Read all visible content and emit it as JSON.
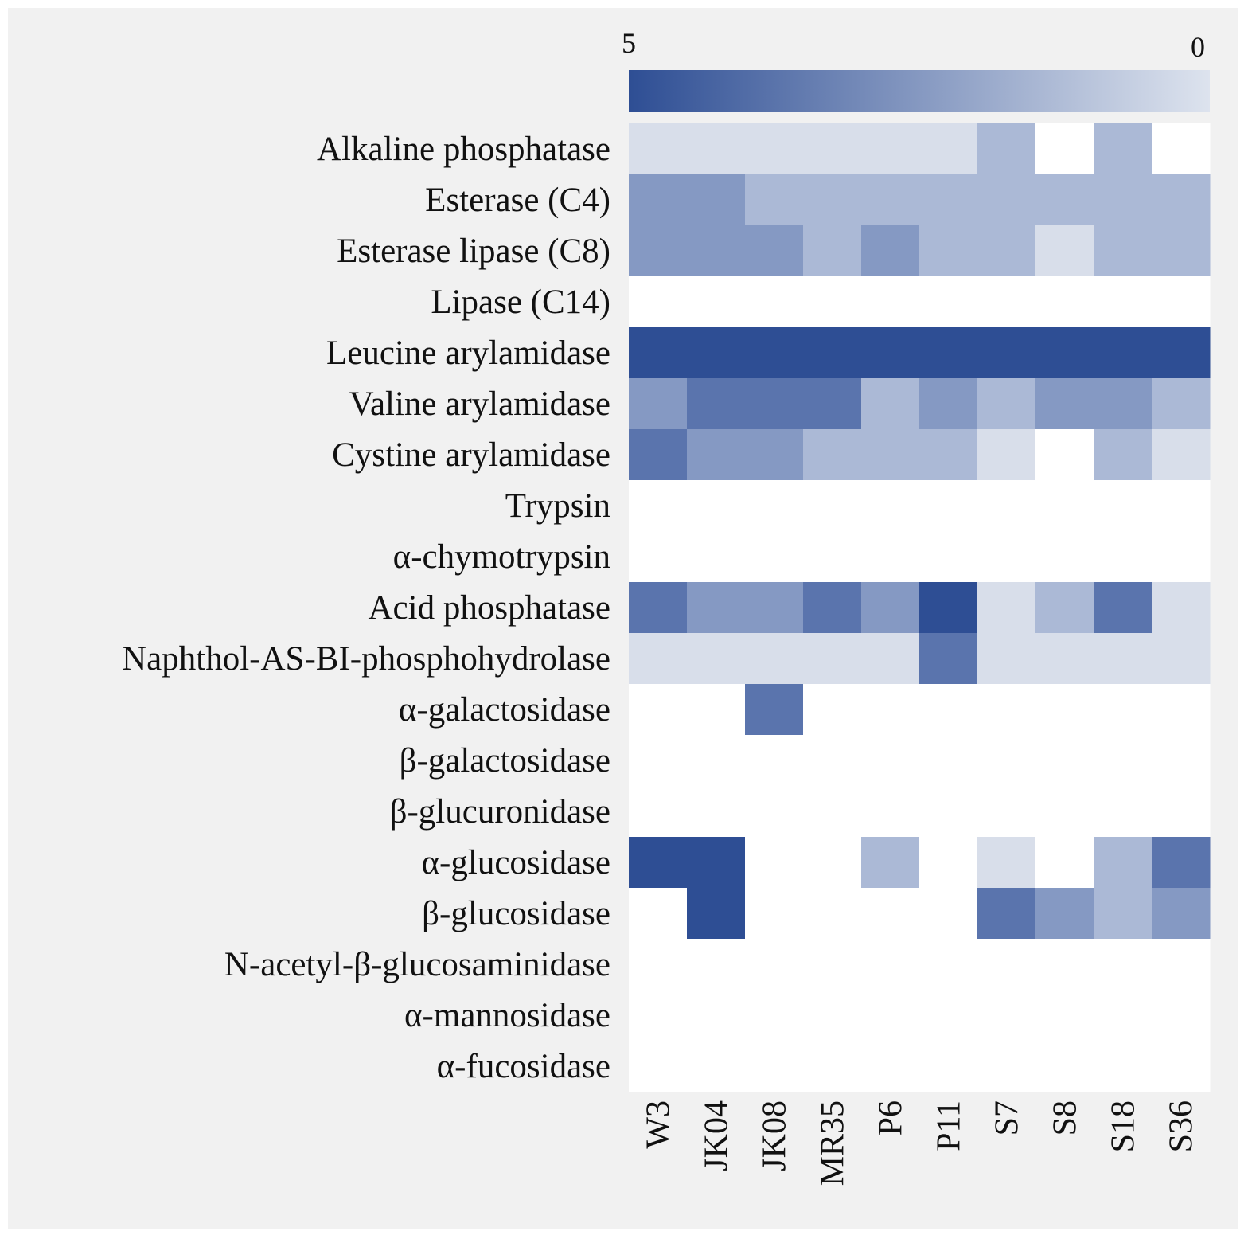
{
  "chart_data": {
    "type": "heatmap",
    "title": "",
    "xlabel": "",
    "ylabel": "",
    "rows": [
      "Alkaline phosphatase",
      "Esterase (C4)",
      "Esterase lipase (C8)",
      "Lipase (C14)",
      "Leucine arylamidase",
      "Valine arylamidase",
      "Cystine arylamidase",
      "Trypsin",
      "α-chymotrypsin",
      "Acid phosphatase",
      "Naphthol-AS-BI-phosphohydrolase",
      "α-galactosidase",
      "β-galactosidase",
      "β-glucuronidase",
      "α-glucosidase",
      "β-glucosidase",
      "N-acetyl-β-glucosaminidase",
      "α-mannosidase",
      "α-fucosidase"
    ],
    "columns": [
      "W3",
      "JK04",
      "JK08",
      "MR35",
      "P6",
      "P11",
      "S7",
      "S8",
      "S18",
      "S36"
    ],
    "values": [
      [
        1,
        1,
        1,
        1,
        1,
        1,
        2,
        0,
        2,
        0
      ],
      [
        3,
        3,
        2,
        2,
        2,
        2,
        2,
        2,
        2,
        2
      ],
      [
        3,
        3,
        3,
        2,
        3,
        2,
        2,
        1,
        2,
        2
      ],
      [
        0,
        0,
        0,
        0,
        0,
        0,
        0,
        0,
        0,
        0
      ],
      [
        5,
        5,
        5,
        5,
        5,
        5,
        5,
        5,
        5,
        5
      ],
      [
        3,
        4,
        4,
        4,
        2,
        3,
        2,
        3,
        3,
        2
      ],
      [
        4,
        3,
        3,
        2,
        2,
        2,
        1,
        0,
        2,
        1
      ],
      [
        0,
        0,
        0,
        0,
        0,
        0,
        0,
        0,
        0,
        0
      ],
      [
        0,
        0,
        0,
        0,
        0,
        0,
        0,
        0,
        0,
        0
      ],
      [
        4,
        3,
        3,
        4,
        3,
        5,
        1,
        2,
        4,
        1
      ],
      [
        1,
        1,
        1,
        1,
        1,
        4,
        1,
        1,
        1,
        1
      ],
      [
        0,
        0,
        4,
        0,
        0,
        0,
        0,
        0,
        0,
        0
      ],
      [
        0,
        0,
        0,
        0,
        0,
        0,
        0,
        0,
        0,
        0
      ],
      [
        0,
        0,
        0,
        0,
        0,
        0,
        0,
        0,
        0,
        0
      ],
      [
        5,
        5,
        0,
        0,
        2,
        0,
        1,
        0,
        2,
        4
      ],
      [
        0,
        5,
        0,
        0,
        0,
        0,
        4,
        3,
        2,
        3
      ],
      [
        0,
        0,
        0,
        0,
        0,
        0,
        0,
        0,
        0,
        0
      ],
      [
        0,
        0,
        0,
        0,
        0,
        0,
        0,
        0,
        0,
        0
      ],
      [
        0,
        0,
        0,
        0,
        0,
        0,
        0,
        0,
        0,
        0
      ]
    ],
    "colorbar": {
      "max_label": "5",
      "min_label": "0",
      "max": 5,
      "min": 0
    },
    "colors": {
      "0": "#ffffff",
      "1": "#d8deea",
      "2": "#abb9d6",
      "3": "#8599c3",
      "4": "#5a74ad",
      "5": "#2e4e94"
    }
  }
}
